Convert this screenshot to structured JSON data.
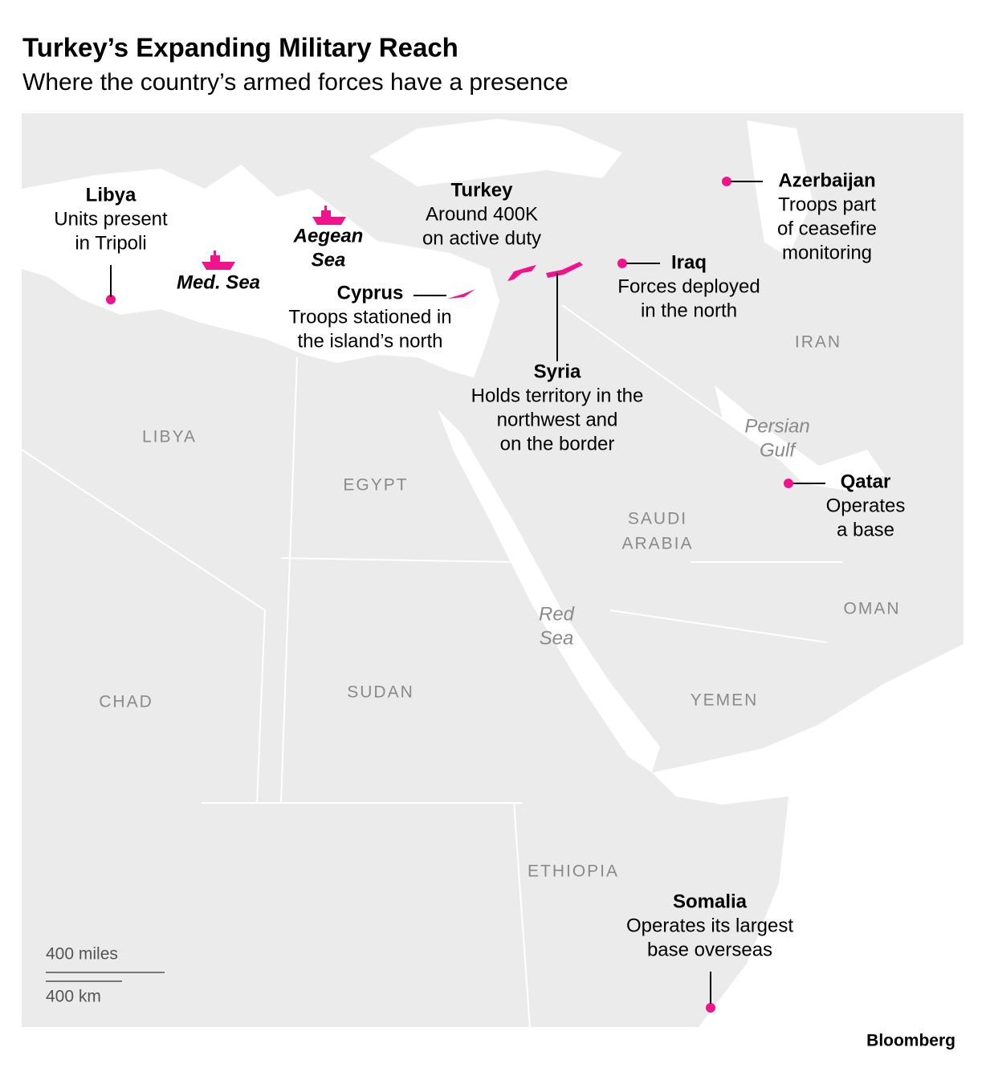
{
  "header": {
    "title": "Turkey’s Expanding Military Reach",
    "subtitle": "Where the country’s armed forces have a presence"
  },
  "annotations": [
    {
      "name": "Libya",
      "lines": [
        "Units present",
        "in Tripoli"
      ]
    },
    {
      "name": "Turkey",
      "lines": [
        "Around 400K",
        "on active duty"
      ]
    },
    {
      "name": "Cyprus",
      "lines": [
        "Troops stationed in",
        "the island’s north"
      ]
    },
    {
      "name": "Syria",
      "lines": [
        "Holds territory in the",
        "northwest and",
        "on the border"
      ]
    },
    {
      "name": "Iraq",
      "lines": [
        "Forces deployed",
        "in the north"
      ]
    },
    {
      "name": "Azerbaijan",
      "lines": [
        "Troops part",
        "of ceasefire",
        "monitoring"
      ]
    },
    {
      "name": "Qatar",
      "lines": [
        "Operates",
        "a base"
      ]
    },
    {
      "name": "Somalia",
      "lines": [
        "Operates its largest",
        "base overseas"
      ]
    }
  ],
  "country_labels": [
    [
      "LIBYA"
    ],
    [
      "EGYPT"
    ],
    [
      "SAUDI",
      "ARABIA"
    ],
    [
      "IRAN"
    ],
    [
      "OMAN"
    ],
    [
      "YEMEN"
    ],
    [
      "CHAD"
    ],
    [
      "SUDAN"
    ],
    [
      "ETHIOPIA"
    ]
  ],
  "water_labels": [
    [
      "Med. Sea"
    ],
    [
      "Aegean",
      "Sea"
    ],
    [
      "Red",
      "Sea"
    ],
    [
      "Persian",
      "Gulf"
    ]
  ],
  "scale": [
    "400 miles",
    "400 km"
  ],
  "source": "Bloomberg"
}
